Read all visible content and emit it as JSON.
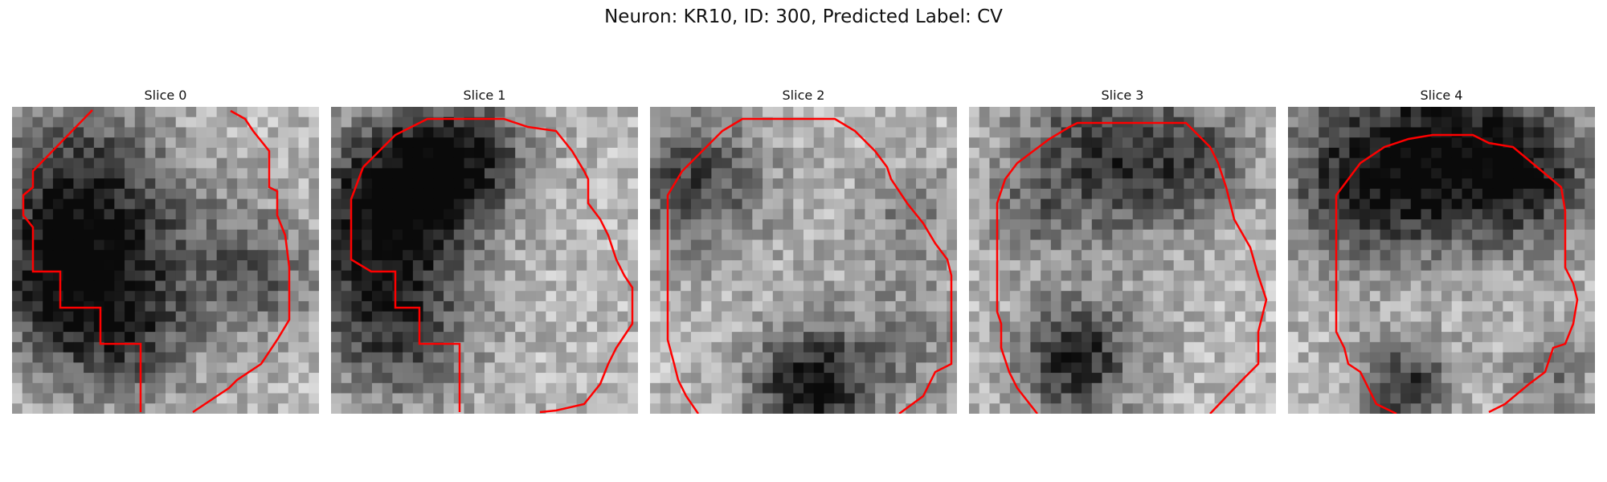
{
  "figure": {
    "title": "Neuron: KR10, ID: 300, Predicted Label: CV"
  },
  "colors": {
    "contour": "#ff0000",
    "colormap": "grayscale"
  },
  "slices": [
    {
      "title": "Slice 0"
    },
    {
      "title": "Slice 1"
    },
    {
      "title": "Slice 2"
    },
    {
      "title": "Slice 3"
    },
    {
      "title": "Slice 4"
    }
  ]
}
